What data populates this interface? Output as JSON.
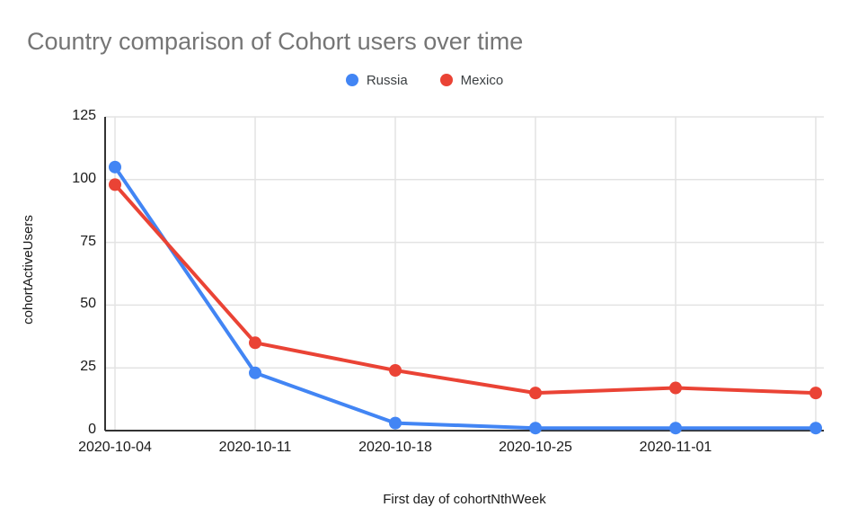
{
  "chart_data": {
    "type": "line",
    "title": "Country comparison of Cohort users over time",
    "xlabel": "First day of cohortNthWeek",
    "ylabel": "cohortActiveUsers",
    "x_tick_labels": [
      "2020-10-04",
      "2020-10-11",
      "2020-10-18",
      "2020-10-25",
      "2020-11-01",
      ""
    ],
    "series": [
      {
        "name": "Russia",
        "color": "#4285F4",
        "values": [
          105,
          23,
          3,
          1,
          1,
          1
        ]
      },
      {
        "name": "Mexico",
        "color": "#EA4335",
        "values": [
          98,
          35,
          24,
          15,
          17,
          15
        ]
      }
    ],
    "ylim": [
      0,
      125
    ],
    "yticks": [
      0,
      25,
      50,
      75,
      100,
      125
    ],
    "grid": true,
    "legend_position": "top",
    "colors": {
      "title_text": "#757575",
      "axis_line": "#333333",
      "gridline": "#e3e3e3",
      "tick_text": "#1a1a1a"
    }
  }
}
